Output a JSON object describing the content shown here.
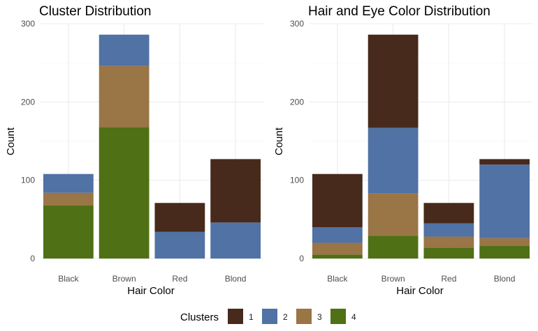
{
  "chart_data": [
    {
      "type": "bar",
      "stacked": true,
      "title": "Cluster Distribution",
      "xlabel": "Hair Color",
      "ylabel": "Count",
      "ylim": [
        0,
        300
      ],
      "yticks": [
        0,
        100,
        200,
        300
      ],
      "categories": [
        "Black",
        "Brown",
        "Red",
        "Blond"
      ],
      "series": [
        {
          "name": "1",
          "values": [
            0,
            0,
            37,
            81
          ]
        },
        {
          "name": "2",
          "values": [
            24,
            40,
            34,
            46
          ]
        },
        {
          "name": "3",
          "values": [
            16,
            78,
            0,
            0
          ]
        },
        {
          "name": "4",
          "values": [
            68,
            168,
            0,
            0
          ]
        }
      ],
      "grid": true
    },
    {
      "type": "bar",
      "stacked": true,
      "title": "Hair and Eye Color Distribution",
      "xlabel": "Hair Color",
      "ylabel": "Count",
      "ylim": [
        0,
        300
      ],
      "yticks": [
        0,
        100,
        200,
        300
      ],
      "categories": [
        "Black",
        "Brown",
        "Red",
        "Blond"
      ],
      "series": [
        {
          "name": "1",
          "values": [
            68,
            119,
            26,
            7
          ]
        },
        {
          "name": "2",
          "values": [
            20,
            84,
            17,
            94
          ]
        },
        {
          "name": "3",
          "values": [
            15,
            54,
            14,
            10
          ]
        },
        {
          "name": "4",
          "values": [
            5,
            29,
            14,
            16
          ]
        }
      ],
      "grid": true
    }
  ],
  "legend": {
    "title": "Clusters",
    "position": "bottom",
    "items": [
      {
        "label": "1",
        "color": "#472A1C"
      },
      {
        "label": "2",
        "color": "#5072A4"
      },
      {
        "label": "3",
        "color": "#9A7545"
      },
      {
        "label": "4",
        "color": "#4F7015"
      }
    ]
  }
}
